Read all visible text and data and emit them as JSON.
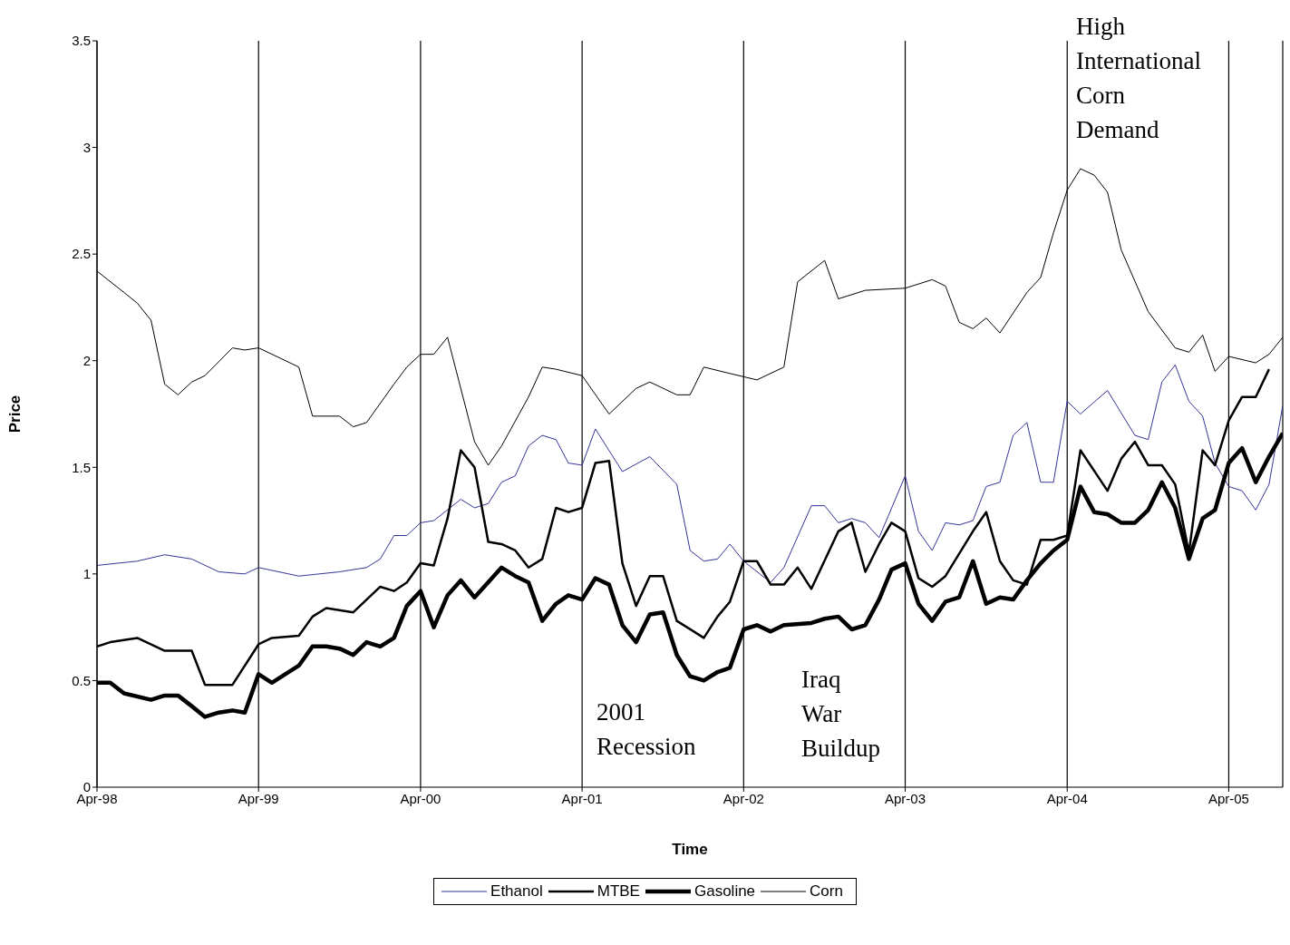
{
  "chart_data": {
    "type": "line",
    "xlabel": "Time",
    "ylabel": "Price",
    "xlim": [
      "1998-04",
      "2005-08"
    ],
    "xticks": [
      {
        "value": "1998-04",
        "label": "Apr-98"
      },
      {
        "value": "1999-04",
        "label": "Apr-99"
      },
      {
        "value": "2000-04",
        "label": "Apr-00"
      },
      {
        "value": "2001-04",
        "label": "Apr-01"
      },
      {
        "value": "2002-04",
        "label": "Apr-02"
      },
      {
        "value": "2003-04",
        "label": "Apr-03"
      },
      {
        "value": "2004-04",
        "label": "Apr-04"
      },
      {
        "value": "2005-04",
        "label": "Apr-05"
      }
    ],
    "ylim": [
      0,
      3.5
    ],
    "yticks": [
      0,
      0.5,
      1,
      1.5,
      2,
      2.5,
      3,
      3.5
    ],
    "grid": "x",
    "legend": "bottom",
    "marker": "none",
    "line_style": "solid",
    "annotations": [
      "2001 Recession",
      "Iraq War Buildup",
      "High International Corn Demand"
    ],
    "series": [
      {
        "name": "Ethanol",
        "color": "#333399",
        "x": [
          "1998-04",
          "1998-07",
          "1998-09",
          "1998-11",
          "1999-01",
          "1999-03",
          "1999-04",
          "1999-07",
          "1999-10",
          "1999-12",
          "2000-01",
          "2000-02",
          "2000-03",
          "2000-04",
          "2000-05",
          "2000-07",
          "2000-08",
          "2000-09",
          "2000-10",
          "2000-11",
          "2000-12",
          "2001-01",
          "2001-02",
          "2001-03",
          "2001-04",
          "2001-05",
          "2001-07",
          "2001-09",
          "2001-11",
          "2001-12",
          "2002-01",
          "2002-02",
          "2002-03",
          "2002-04",
          "2002-06",
          "2002-07",
          "2002-09",
          "2002-10",
          "2002-11",
          "2002-12",
          "2003-01",
          "2003-02",
          "2003-04",
          "2003-05",
          "2003-06",
          "2003-07",
          "2003-08",
          "2003-09",
          "2003-10",
          "2003-11",
          "2003-12",
          "2004-01",
          "2004-02",
          "2004-03",
          "2004-04",
          "2004-05",
          "2004-07",
          "2004-09",
          "2004-10",
          "2004-11",
          "2004-12",
          "2005-01",
          "2005-02",
          "2005-03",
          "2005-04",
          "2005-05",
          "2005-06",
          "2005-07",
          "2005-08"
        ],
        "values": [
          1.04,
          1.06,
          1.09,
          1.07,
          1.01,
          1.0,
          1.03,
          0.99,
          1.01,
          1.03,
          1.07,
          1.18,
          1.18,
          1.24,
          1.25,
          1.35,
          1.31,
          1.33,
          1.43,
          1.46,
          1.6,
          1.65,
          1.63,
          1.52,
          1.51,
          1.68,
          1.48,
          1.55,
          1.42,
          1.11,
          1.06,
          1.07,
          1.14,
          1.06,
          0.96,
          1.03,
          1.32,
          1.32,
          1.24,
          1.26,
          1.24,
          1.17,
          1.46,
          1.2,
          1.11,
          1.24,
          1.23,
          1.25,
          1.41,
          1.43,
          1.65,
          1.71,
          1.43,
          1.43,
          1.81,
          1.75,
          1.86,
          1.65,
          1.63,
          1.9,
          1.98,
          1.81,
          1.74,
          1.52,
          1.41,
          1.39,
          1.3,
          1.42,
          1.79
        ]
      },
      {
        "name": "MTBE",
        "color": "#000000",
        "x": [
          "1998-04",
          "1998-05",
          "1998-07",
          "1998-09",
          "1998-11",
          "1998-12",
          "1999-02",
          "1999-04",
          "1999-05",
          "1999-07",
          "1999-08",
          "1999-09",
          "1999-11",
          "2000-01",
          "2000-02",
          "2000-03",
          "2000-04",
          "2000-05",
          "2000-06",
          "2000-07",
          "2000-08",
          "2000-09",
          "2000-10",
          "2000-11",
          "2000-12",
          "2001-01",
          "2001-02",
          "2001-03",
          "2001-04",
          "2001-05",
          "2001-06",
          "2001-07",
          "2001-08",
          "2001-09",
          "2001-10",
          "2001-11",
          "2002-01",
          "2002-02",
          "2002-03",
          "2002-04",
          "2002-05",
          "2002-06",
          "2002-07",
          "2002-08",
          "2002-09",
          "2002-11",
          "2002-12",
          "2003-01",
          "2003-02",
          "2003-03",
          "2003-04",
          "2003-05",
          "2003-06",
          "2003-07",
          "2003-09",
          "2003-10",
          "2003-11",
          "2003-12",
          "2004-01",
          "2004-02",
          "2004-03",
          "2004-04",
          "2004-05",
          "2004-07",
          "2004-08",
          "2004-09",
          "2004-10",
          "2004-11",
          "2004-12",
          "2005-01",
          "2005-02",
          "2005-03",
          "2005-04",
          "2005-05",
          "2005-06",
          "2005-07"
        ],
        "values": [
          0.66,
          0.68,
          0.7,
          0.64,
          0.64,
          0.48,
          0.48,
          0.67,
          0.7,
          0.71,
          0.8,
          0.84,
          0.82,
          0.94,
          0.92,
          0.96,
          1.05,
          1.04,
          1.26,
          1.58,
          1.5,
          1.15,
          1.14,
          1.11,
          1.03,
          1.07,
          1.31,
          1.29,
          1.31,
          1.52,
          1.53,
          1.05,
          0.85,
          0.99,
          0.99,
          0.78,
          0.7,
          0.8,
          0.87,
          1.06,
          1.06,
          0.95,
          0.95,
          1.03,
          0.93,
          1.2,
          1.24,
          1.01,
          1.14,
          1.24,
          1.2,
          0.98,
          0.94,
          0.99,
          1.2,
          1.29,
          1.06,
          0.97,
          0.95,
          1.16,
          1.16,
          1.18,
          1.58,
          1.39,
          1.54,
          1.62,
          1.51,
          1.51,
          1.42,
          1.1,
          1.58,
          1.51,
          1.72,
          1.83,
          1.83,
          1.96
        ]
      },
      {
        "name": "Gasoline",
        "color": "#000000",
        "x": [
          "1998-04",
          "1998-05",
          "1998-06",
          "1998-08",
          "1998-09",
          "1998-10",
          "1998-11",
          "1998-12",
          "1999-01",
          "1999-02",
          "1999-03",
          "1999-04",
          "1999-05",
          "1999-07",
          "1999-08",
          "1999-09",
          "1999-10",
          "1999-11",
          "1999-12",
          "2000-01",
          "2000-02",
          "2000-03",
          "2000-04",
          "2000-05",
          "2000-06",
          "2000-07",
          "2000-08",
          "2000-10",
          "2000-11",
          "2000-12",
          "2001-01",
          "2001-02",
          "2001-03",
          "2001-04",
          "2001-05",
          "2001-06",
          "2001-07",
          "2001-08",
          "2001-09",
          "2001-10",
          "2001-11",
          "2001-12",
          "2002-01",
          "2002-02",
          "2002-03",
          "2002-04",
          "2002-05",
          "2002-06",
          "2002-07",
          "2002-09",
          "2002-10",
          "2002-11",
          "2002-12",
          "2003-01",
          "2003-02",
          "2003-03",
          "2003-04",
          "2003-05",
          "2003-06",
          "2003-07",
          "2003-08",
          "2003-09",
          "2003-10",
          "2003-11",
          "2003-12",
          "2004-01",
          "2004-02",
          "2004-03",
          "2004-04",
          "2004-05",
          "2004-06",
          "2004-07",
          "2004-08",
          "2004-09",
          "2004-10",
          "2004-11",
          "2004-12",
          "2005-01",
          "2005-02",
          "2005-03",
          "2005-04",
          "2005-05",
          "2005-06",
          "2005-07",
          "2005-08"
        ],
        "values": [
          0.49,
          0.49,
          0.44,
          0.41,
          0.43,
          0.43,
          0.38,
          0.33,
          0.35,
          0.36,
          0.35,
          0.53,
          0.49,
          0.57,
          0.66,
          0.66,
          0.65,
          0.62,
          0.68,
          0.66,
          0.7,
          0.85,
          0.92,
          0.75,
          0.9,
          0.97,
          0.89,
          1.03,
          0.99,
          0.96,
          0.78,
          0.86,
          0.9,
          0.88,
          0.98,
          0.95,
          0.76,
          0.68,
          0.81,
          0.82,
          0.62,
          0.52,
          0.5,
          0.54,
          0.56,
          0.74,
          0.76,
          0.73,
          0.76,
          0.77,
          0.79,
          0.8,
          0.74,
          0.76,
          0.88,
          1.02,
          1.05,
          0.86,
          0.78,
          0.87,
          0.89,
          1.06,
          0.86,
          0.89,
          0.88,
          0.97,
          1.05,
          1.11,
          1.16,
          1.41,
          1.29,
          1.28,
          1.24,
          1.24,
          1.3,
          1.43,
          1.31,
          1.07,
          1.26,
          1.3,
          1.52,
          1.59,
          1.43,
          1.55,
          1.66
        ]
      },
      {
        "name": "Corn",
        "color": "#000000",
        "x": [
          "1998-04",
          "1998-06",
          "1998-07",
          "1998-08",
          "1998-09",
          "1998-10",
          "1998-11",
          "1998-12",
          "1999-02",
          "1999-03",
          "1999-04",
          "1999-06",
          "1999-07",
          "1999-08",
          "1999-10",
          "1999-11",
          "1999-12",
          "2000-02",
          "2000-03",
          "2000-04",
          "2000-05",
          "2000-06",
          "2000-08",
          "2000-09",
          "2000-10",
          "2000-12",
          "2001-01",
          "2001-02",
          "2001-04",
          "2001-06",
          "2001-08",
          "2001-09",
          "2001-11",
          "2001-12",
          "2002-01",
          "2002-03",
          "2002-05",
          "2002-07",
          "2002-08",
          "2002-10",
          "2002-11",
          "2003-01",
          "2003-04",
          "2003-06",
          "2003-07",
          "2003-08",
          "2003-09",
          "2003-10",
          "2003-11",
          "2004-01",
          "2004-02",
          "2004-03",
          "2004-04",
          "2004-05",
          "2004-06",
          "2004-07",
          "2004-08",
          "2004-10",
          "2004-12",
          "2005-01",
          "2005-02",
          "2005-03",
          "2005-04",
          "2005-06",
          "2005-07",
          "2005-08"
        ],
        "values": [
          2.42,
          2.32,
          2.27,
          2.19,
          1.89,
          1.84,
          1.9,
          1.93,
          2.06,
          2.05,
          2.06,
          2.0,
          1.97,
          1.74,
          1.74,
          1.69,
          1.71,
          1.89,
          1.97,
          2.03,
          2.03,
          2.11,
          1.62,
          1.51,
          1.6,
          1.83,
          1.97,
          1.96,
          1.93,
          1.75,
          1.87,
          1.9,
          1.84,
          1.84,
          1.97,
          1.94,
          1.91,
          1.97,
          2.37,
          2.47,
          2.29,
          2.33,
          2.34,
          2.38,
          2.35,
          2.18,
          2.15,
          2.2,
          2.13,
          2.32,
          2.39,
          2.6,
          2.8,
          2.9,
          2.87,
          2.79,
          2.52,
          2.23,
          2.06,
          2.04,
          2.12,
          1.95,
          2.02,
          1.99,
          2.03,
          2.11
        ]
      }
    ]
  }
}
